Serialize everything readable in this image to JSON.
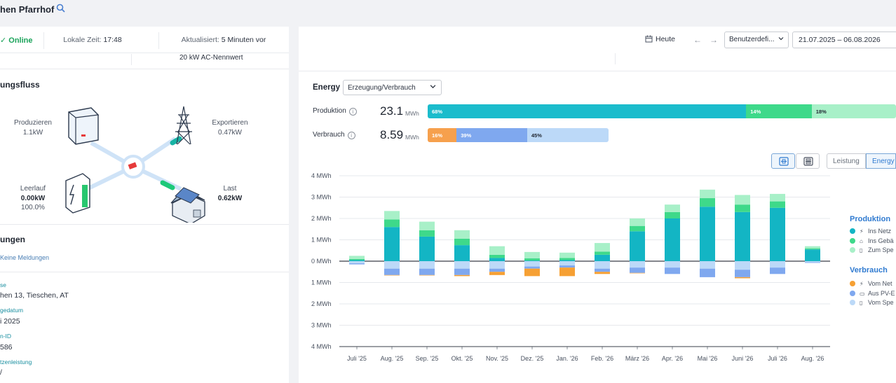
{
  "header": {
    "site_title": "hen Pfarrhof"
  },
  "status": {
    "online": "Online",
    "local_time_label": "Lokale Zeit:",
    "local_time": "17:48",
    "updated_label": "Aktualisiert:",
    "updated": "5 Minuten vor",
    "ac_rating": "20 kW AC-Nennwert"
  },
  "flow": {
    "title": "ungsfluss",
    "produce": {
      "label": "Produzieren",
      "value": "1.1kW"
    },
    "export": {
      "label": "Exportieren",
      "value": "0.47kW"
    },
    "battery": {
      "label": "Leerlauf",
      "value": "0.00kW",
      "soc": "100.0%"
    },
    "load": {
      "label": "Last",
      "value": "0.62kW"
    }
  },
  "alerts": {
    "title": "ungen",
    "none": "Keine Meldungen"
  },
  "info": [
    {
      "label": "se",
      "value": "hen 13, Tieschen, AT"
    },
    {
      "label": "gedatum",
      "value": "i 2025"
    },
    {
      "label": "n-ID",
      "value": "586"
    },
    {
      "label": "tzenleistung",
      "value": "/"
    }
  ],
  "toolbar": {
    "today": "Heute",
    "prev": "←",
    "next": "→",
    "range_select": "Benutzerdefi...",
    "date_range": "21.07.2025 – 06.08.2026"
  },
  "energy": {
    "label": "Energy",
    "select": "Erzeugung/Verbrauch",
    "production": {
      "label": "Produktion",
      "value": "23.1",
      "unit": "MWh",
      "segments": [
        {
          "pct": "68%",
          "share": 0.68,
          "color": "#1bbccc"
        },
        {
          "pct": "14%",
          "share": 0.14,
          "color": "#3ed98a"
        },
        {
          "pct": "18%",
          "share": 0.18,
          "color": "#a8f0c8"
        }
      ]
    },
    "consumption": {
      "label": "Verbrauch",
      "value": "8.59",
      "unit": "MWh",
      "segments": [
        {
          "pct": "16%",
          "share": 0.16,
          "color": "#f6a04d"
        },
        {
          "pct": "39%",
          "share": 0.39,
          "color": "#7fa8ef"
        },
        {
          "pct": "45%",
          "share": 0.45,
          "color": "#bcd9f8"
        }
      ]
    }
  },
  "modes": {
    "power": "Leistung",
    "energy": "Energy"
  },
  "legend": {
    "production_title": "Produktion",
    "production": [
      {
        "label": "Ins Netz",
        "color": "#13b5c4"
      },
      {
        "label": "Ins Gebä",
        "color": "#3ed98a"
      },
      {
        "label": "Zum Spe",
        "color": "#a8f0c8"
      }
    ],
    "consumption_title": "Verbrauch",
    "consumption": [
      {
        "label": "Vom Net",
        "color": "#f6a033"
      },
      {
        "label": "Aus PV-E",
        "color": "#7fa8ef"
      },
      {
        "label": "Vom Spe",
        "color": "#bcd9f8"
      }
    ]
  },
  "chart_data": {
    "type": "bar",
    "stacked": true,
    "categories": [
      "Juli '25",
      "Aug. '25",
      "Sep. '25",
      "Okt. '25",
      "Nov. '25",
      "Dez. '25",
      "Jan. '26",
      "Feb. '26",
      "März '26",
      "Apr. '26",
      "Mai '26",
      "Juni '26",
      "Juli '26",
      "Aug. '26"
    ],
    "y_ticks": [
      "4 MWh",
      "3 MWh",
      "2 MWh",
      "1 MWh",
      "0 MWh",
      "1 MWh",
      "2 MWh",
      "3 MWh",
      "4 MWh"
    ],
    "ylim": [
      -4,
      4
    ],
    "unit": "MWh",
    "grid": true,
    "series": [
      {
        "name": "Ins Netz",
        "group": "Produktion",
        "color": "#13b5c4",
        "values": [
          0.05,
          1.6,
          1.15,
          0.75,
          0.15,
          0.03,
          0.05,
          0.3,
          1.4,
          2.0,
          2.55,
          2.3,
          2.5,
          0.55
        ]
      },
      {
        "name": "Ins Gebä",
        "group": "Produktion",
        "color": "#3ed98a",
        "values": [
          0.05,
          0.35,
          0.3,
          0.3,
          0.15,
          0.1,
          0.1,
          0.15,
          0.25,
          0.3,
          0.4,
          0.35,
          0.3,
          0.05
        ]
      },
      {
        "name": "Zum Spe",
        "group": "Produktion",
        "color": "#a8f0c8",
        "values": [
          0.15,
          0.4,
          0.4,
          0.4,
          0.4,
          0.3,
          0.25,
          0.4,
          0.35,
          0.35,
          0.4,
          0.45,
          0.35,
          0.1
        ]
      },
      {
        "name": "Vom Spe",
        "group": "Verbrauch",
        "color": "#bcd9f8",
        "values": [
          -0.1,
          -0.35,
          -0.35,
          -0.35,
          -0.35,
          -0.25,
          -0.2,
          -0.35,
          -0.3,
          -0.3,
          -0.35,
          -0.4,
          -0.3,
          -0.05
        ]
      },
      {
        "name": "Aus PV-E",
        "group": "Verbrauch",
        "color": "#7fa8ef",
        "values": [
          -0.05,
          -0.3,
          -0.3,
          -0.3,
          -0.15,
          -0.1,
          -0.1,
          -0.15,
          -0.25,
          -0.3,
          -0.4,
          -0.35,
          -0.3,
          -0.03
        ]
      },
      {
        "name": "Vom Net",
        "group": "Verbrauch",
        "color": "#f6a033",
        "values": [
          0,
          -0.02,
          -0.02,
          -0.05,
          -0.15,
          -0.35,
          -0.4,
          -0.1,
          -0.02,
          0,
          0,
          -0.05,
          0,
          0
        ]
      }
    ]
  }
}
